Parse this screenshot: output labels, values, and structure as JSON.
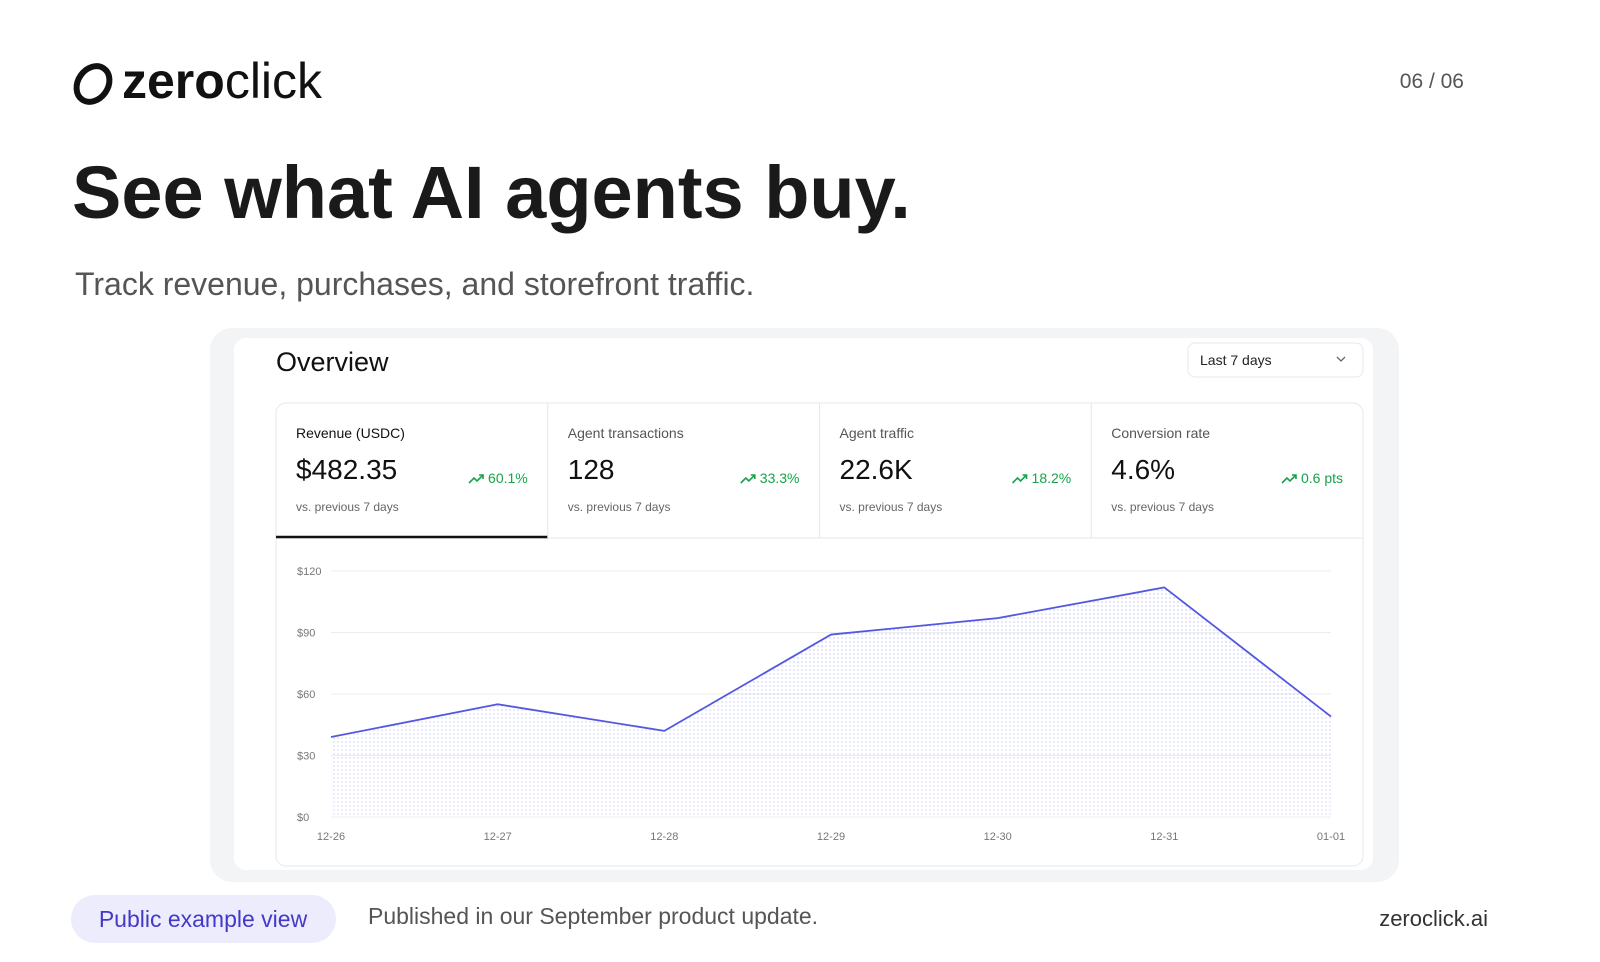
{
  "header": {
    "brand_bold": "zero",
    "brand_light": "click",
    "counter": "06 / 06"
  },
  "title": "See what AI agents buy.",
  "subtitle": "Track revenue, purchases, and storefront traffic.",
  "dashboard": {
    "heading": "Overview",
    "range": "Last 7 days",
    "metrics": [
      {
        "label": "Revenue (USDC)",
        "value": "$482.35",
        "change": "60.1%",
        "note": "vs. previous 7 days"
      },
      {
        "label": "Agent transactions",
        "value": "128",
        "change": "33.3%",
        "note": "vs. previous 7 days"
      },
      {
        "label": "Agent traffic",
        "value": "22.6K",
        "change": "18.2%",
        "note": "vs. previous 7 days"
      },
      {
        "label": "Conversion rate",
        "value": "4.6%",
        "change": "0.6 pts",
        "note": "vs. previous 7 days"
      }
    ]
  },
  "chart_data": {
    "type": "area",
    "categories": [
      "12-26",
      "12-27",
      "12-28",
      "12-29",
      "12-30",
      "12-31",
      "01-01"
    ],
    "values": [
      39,
      55,
      42,
      89,
      97,
      112,
      49
    ],
    "color": "#5457e0",
    "ylim": [
      0,
      120
    ],
    "yticks": [
      {
        "value": 0,
        "label": "$0"
      },
      {
        "value": 30,
        "label": "$30"
      },
      {
        "value": 60,
        "label": "$60"
      },
      {
        "value": 90,
        "label": "$90"
      },
      {
        "value": 120,
        "label": "$120"
      }
    ],
    "grid": true
  },
  "footer": {
    "badge": "Public example view",
    "note": "Published in our September product update.",
    "site": "zeroclick.ai"
  }
}
